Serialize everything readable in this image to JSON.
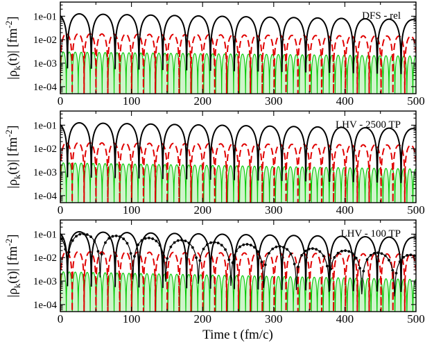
{
  "figure": {
    "xlabel": "Time t (fm/c)",
    "ylabel": "|ρ_k(t)| [fm^-2]",
    "ylabel_parts": {
      "main": "|ρ",
      "sub": "k",
      "mid": "(t)| [fm",
      "sup": "-2",
      "end": "]"
    }
  },
  "chart_data": [
    {
      "type": "line",
      "annotation": "DFS - rel",
      "xlim": [
        0,
        500
      ],
      "ylim": [
        5e-05,
        0.4
      ],
      "yscale": "log",
      "xticks": [
        0,
        100,
        200,
        300,
        400,
        500
      ],
      "xtick_labels": [
        "0",
        "100",
        "200",
        "300",
        "400",
        "500"
      ],
      "yticks": [
        0.0001,
        0.001,
        0.01,
        0.1
      ],
      "ytick_labels": [
        "1e-04",
        "1e-03",
        "1e-02",
        "1e-01"
      ],
      "series": [
        {
          "color": "#000000",
          "style": "solid",
          "x0": 10,
          "period": 33.5,
          "peak": 0.13,
          "decay": 0.0012
        },
        {
          "color": "#e00000",
          "style": "dashed",
          "x0": 0,
          "period": 16.7,
          "peak": 0.018,
          "decay": 0.0005
        },
        {
          "color": "#00c800",
          "style": "solid-filled",
          "x0": 0,
          "period": 8.4,
          "peak": 0.003,
          "decay": 0.0008
        }
      ]
    },
    {
      "type": "line",
      "annotation": "LHV - 2500 TP",
      "xlim": [
        0,
        500
      ],
      "ylim": [
        5e-05,
        0.4
      ],
      "yscale": "log",
      "xticks": [
        0,
        100,
        200,
        300,
        400,
        500
      ],
      "xtick_labels": [
        "0",
        "100",
        "200",
        "300",
        "400",
        "500"
      ],
      "yticks": [
        0.0001,
        0.001,
        0.01,
        0.1
      ],
      "ytick_labels": [
        "1e-04",
        "1e-03",
        "1e-02",
        "1e-01"
      ],
      "series": [
        {
          "color": "#000000",
          "style": "solid",
          "x0": 10,
          "period": 33.5,
          "peak": 0.13,
          "decay": 0.0012
        },
        {
          "color": "#e00000",
          "style": "dashed",
          "x0": 0,
          "period": 16.7,
          "peak": 0.018,
          "decay": 0.0005
        },
        {
          "color": "#00c800",
          "style": "solid-filled",
          "x0": 0,
          "period": 8.4,
          "peak": 0.0025,
          "decay": 0.0012
        }
      ]
    },
    {
      "type": "line",
      "annotation": "LHV - 100 TP",
      "xlim": [
        0,
        500
      ],
      "ylim": [
        5e-05,
        0.4
      ],
      "yscale": "log",
      "xticks": [
        0,
        100,
        200,
        300,
        400,
        500
      ],
      "xtick_labels": [
        "0",
        "100",
        "200",
        "300",
        "400",
        "500"
      ],
      "yticks": [
        0.0001,
        0.001,
        0.01,
        0.1
      ],
      "ytick_labels": [
        "1e-04",
        "1e-03",
        "1e-02",
        "1e-01"
      ],
      "series": [
        {
          "color": "#000000",
          "style": "solid",
          "x0": 10,
          "period": 33.5,
          "peak": 0.13,
          "decay": 0.0012
        },
        {
          "color": "#000000",
          "style": "solid-dotted-markers",
          "x0": 10,
          "period": 46,
          "peak": 0.12,
          "decay": 0.0045,
          "floor": 0.0055
        },
        {
          "color": "#e00000",
          "style": "dashed",
          "x0": 0,
          "period": 16.7,
          "peak": 0.018,
          "decay": 0.0005
        },
        {
          "color": "#00c800",
          "style": "solid-filled",
          "x0": 0,
          "period": 8.4,
          "peak": 0.0025,
          "decay": 0.0015
        }
      ]
    }
  ]
}
